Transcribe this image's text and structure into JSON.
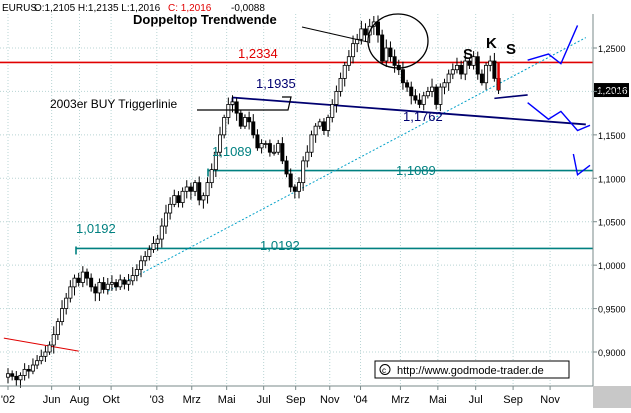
{
  "header": {
    "symbol": "EURUS",
    "ohlc_text": "O:1,2105 H:1,2135 L:1,2016",
    "close_text": "C: 1,2016",
    "change_text": "-0,0088"
  },
  "watermark": {
    "text": "http://www.godmode-trader.de",
    "icon": "copyright-icon"
  },
  "colors": {
    "background": "#ffffff",
    "grid": "#b8d4d4",
    "candle_up": "#ffffff",
    "candle_down": "#000000",
    "candle_outline": "#000000",
    "resistance": "#e00000",
    "support": "#008080",
    "trigger_line": "#000070",
    "trend_line": "#00a0c8",
    "forecast_arrows": "#0000ff",
    "red_text": "#e00000",
    "teal_text": "#008080",
    "navy_text": "#000070",
    "price_tag_bg": "#000000",
    "price_tag_text": "#ffffff"
  },
  "chart_data": {
    "type": "candlestick",
    "title": "EURUS",
    "ylim": [
      0.86,
      1.3
    ],
    "yticks": [
      "1,2500",
      "1,2000",
      "1,1500",
      "1,1000",
      "1,0500",
      "1,0000",
      "0,9500",
      "0,9000"
    ],
    "ytick_values": [
      1.25,
      1.2,
      1.15,
      1.1,
      1.05,
      1.0,
      0.95,
      0.9
    ],
    "x_labels": [
      "'02",
      "Jun",
      "Aug",
      "Okt",
      "'03",
      "Mrz",
      "Mai",
      "Jul",
      "Sep",
      "Nov",
      "'04",
      "Mrz",
      "Mai",
      "Jul",
      "Sep",
      "Nov"
    ],
    "x_label_index": [
      0,
      10.5,
      17.2,
      24.8,
      35.8,
      44.2,
      52.6,
      61.5,
      69.2,
      77.4,
      84.8,
      94.4,
      103.4,
      112.5,
      121.5,
      130.4
    ],
    "x_index_range": [
      -1,
      140
    ],
    "current_price": "1,2016",
    "current_value": 1.2016,
    "weekly_closes": [
      0.875,
      0.872,
      0.868,
      0.873,
      0.88,
      0.878,
      0.885,
      0.89,
      0.895,
      0.9,
      0.908,
      0.92,
      0.935,
      0.95,
      0.962,
      0.975,
      0.985,
      0.98,
      0.992,
      0.985,
      0.975,
      0.968,
      0.98,
      0.972,
      0.978,
      0.98,
      0.975,
      0.983,
      0.978,
      0.982,
      0.988,
      0.995,
      1.005,
      1.01,
      1.018,
      1.025,
      1.03,
      1.045,
      1.06,
      1.07,
      1.08,
      1.072,
      1.085,
      1.09,
      1.085,
      1.095,
      1.075,
      1.08,
      1.095,
      1.11,
      1.13,
      1.15,
      1.17,
      1.185,
      1.188,
      1.175,
      1.16,
      1.17,
      1.165,
      1.15,
      1.135,
      1.14,
      1.14,
      1.13,
      1.13,
      1.14,
      1.12,
      1.105,
      1.09,
      1.085,
      1.095,
      1.12,
      1.13,
      1.15,
      1.16,
      1.165,
      1.155,
      1.17,
      1.185,
      1.2,
      1.215,
      1.23,
      1.24,
      1.255,
      1.26,
      1.272,
      1.265,
      1.275,
      1.28,
      1.265,
      1.235,
      1.25,
      1.24,
      1.23,
      1.225,
      1.21,
      1.205,
      1.195,
      1.19,
      1.185,
      1.195,
      1.2,
      1.205,
      1.185,
      1.205,
      1.21,
      1.22,
      1.225,
      1.23,
      1.22,
      1.235,
      1.23,
      1.24,
      1.22,
      1.21,
      1.23,
      1.235,
      1.215,
      1.2016
    ],
    "levels": [
      {
        "value": 1.2334,
        "label": "1,2334",
        "color": "resistance"
      },
      {
        "value": 1.1089,
        "label": "1,1089",
        "color": "support"
      },
      {
        "value": 1.0192,
        "label": "1,0192",
        "color": "support"
      }
    ],
    "trigger_line": {
      "label": "1,1935",
      "end_label": "1,1762",
      "start": [
        54,
        1.193
      ],
      "end": [
        139,
        1.162
      ]
    },
    "trend_line": {
      "start": [
        24,
        0.97
      ],
      "end": [
        139,
        1.262
      ]
    },
    "old_trend_line": {
      "start": [
        -1,
        0.916
      ],
      "end": [
        17,
        0.901
      ]
    },
    "forecast_up": [
      [
        125,
        1.236
      ],
      [
        130,
        1.243
      ],
      [
        133,
        1.232
      ],
      [
        137,
        1.276
      ]
    ],
    "forecast_down": [
      [
        125,
        1.187
      ],
      [
        130,
        1.168
      ],
      [
        133,
        1.177
      ],
      [
        137,
        1.155
      ],
      [
        140,
        1.161
      ],
      [
        136,
        1.128
      ],
      [
        137,
        1.104
      ],
      [
        140,
        1.115
      ]
    ],
    "annotations": {
      "doppeltop": "Doppeltop Trendwende",
      "trigger": "2003er BUY Triggerlinie",
      "shoulder_left": "S",
      "head": "K",
      "shoulder_right": "S",
      "level_1": "1,2334",
      "level_2": "1,1089",
      "level_2_right": "1,1089",
      "level_3": "1,0192",
      "level_3_right": "1,0192"
    }
  }
}
